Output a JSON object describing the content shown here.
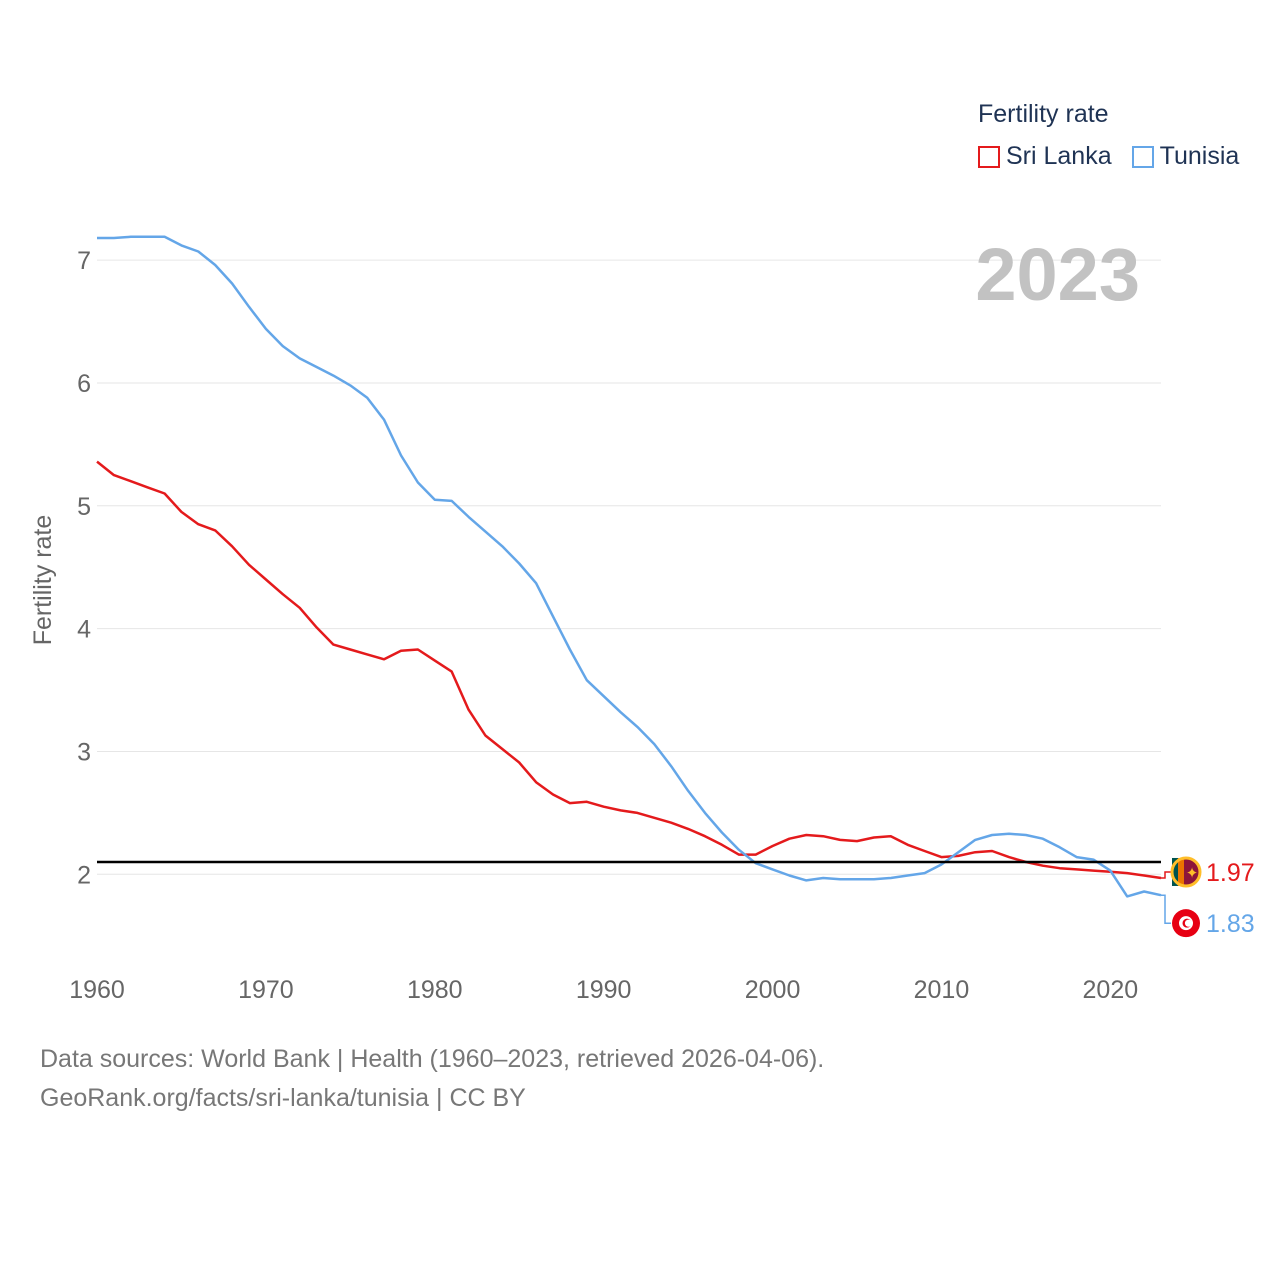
{
  "legend": {
    "title": "Fertility rate",
    "items": [
      {
        "label": "Sri Lanka",
        "color": "#e41a1c"
      },
      {
        "label": "Tunisia",
        "color": "#64a6e8"
      }
    ]
  },
  "source": {
    "line1": "Data sources: World Bank | Health (1960–2023, retrieved 2026-04-06).",
    "line2": "GeoRank.org/facts/sri-lanka/tunisia | CC BY"
  },
  "chart_data": {
    "type": "line",
    "year_label": "2023",
    "ylabel": "Fertility rate",
    "xlim": [
      1960,
      2023
    ],
    "ylim": [
      1.4,
      7.4
    ],
    "y_ticks": [
      2,
      3,
      4,
      5,
      6,
      7
    ],
    "x_ticks": [
      1960,
      1970,
      1980,
      1990,
      2000,
      2010,
      2020
    ],
    "reference_line": 2.1,
    "x": [
      1960,
      1961,
      1962,
      1963,
      1964,
      1965,
      1966,
      1967,
      1968,
      1969,
      1970,
      1971,
      1972,
      1973,
      1974,
      1975,
      1976,
      1977,
      1978,
      1979,
      1980,
      1981,
      1982,
      1983,
      1984,
      1985,
      1986,
      1987,
      1988,
      1989,
      1990,
      1991,
      1992,
      1993,
      1994,
      1995,
      1996,
      1997,
      1998,
      1999,
      2000,
      2001,
      2002,
      2003,
      2004,
      2005,
      2006,
      2007,
      2008,
      2009,
      2010,
      2011,
      2012,
      2013,
      2014,
      2015,
      2016,
      2017,
      2018,
      2019,
      2020,
      2021,
      2022,
      2023
    ],
    "series": [
      {
        "name": "Sri Lanka",
        "color": "#e41a1c",
        "end_label": "1.97",
        "values": [
          5.36,
          5.25,
          5.2,
          5.15,
          5.1,
          4.95,
          4.85,
          4.8,
          4.67,
          4.52,
          4.4,
          4.28,
          4.17,
          4.01,
          3.87,
          3.83,
          3.79,
          3.75,
          3.82,
          3.83,
          3.74,
          3.65,
          3.34,
          3.13,
          3.02,
          2.91,
          2.75,
          2.65,
          2.58,
          2.59,
          2.55,
          2.52,
          2.5,
          2.46,
          2.42,
          2.37,
          2.31,
          2.24,
          2.16,
          2.16,
          2.23,
          2.29,
          2.32,
          2.31,
          2.28,
          2.27,
          2.3,
          2.31,
          2.24,
          2.19,
          2.14,
          2.15,
          2.18,
          2.19,
          2.14,
          2.1,
          2.07,
          2.05,
          2.04,
          2.03,
          2.02,
          2.01,
          1.99,
          1.97
        ]
      },
      {
        "name": "Tunisia",
        "color": "#64a6e8",
        "end_label": "1.83",
        "values": [
          7.18,
          7.18,
          7.19,
          7.19,
          7.19,
          7.12,
          7.07,
          6.96,
          6.81,
          6.62,
          6.44,
          6.3,
          6.2,
          6.13,
          6.06,
          5.98,
          5.88,
          5.7,
          5.41,
          5.19,
          5.05,
          5.04,
          4.91,
          4.79,
          4.67,
          4.53,
          4.37,
          4.1,
          3.83,
          3.58,
          3.45,
          3.32,
          3.2,
          3.06,
          2.88,
          2.68,
          2.5,
          2.34,
          2.2,
          2.09,
          2.04,
          1.99,
          1.95,
          1.97,
          1.96,
          1.96,
          1.96,
          1.97,
          1.99,
          2.01,
          2.08,
          2.18,
          2.28,
          2.32,
          2.33,
          2.32,
          2.29,
          2.22,
          2.14,
          2.12,
          2.03,
          1.82,
          1.86,
          1.83
        ]
      }
    ]
  }
}
